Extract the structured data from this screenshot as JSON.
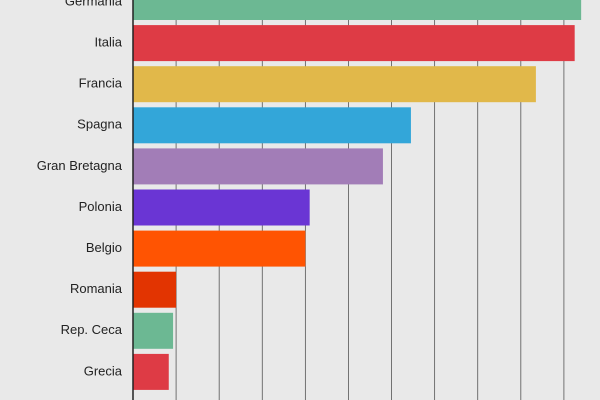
{
  "chart_data": {
    "type": "bar",
    "orientation": "horizontal",
    "title": "",
    "xlabel": "",
    "ylabel": "",
    "grid": true,
    "xlim": [
      0,
      1100
    ],
    "gridlines": [
      0,
      100,
      200,
      300,
      400,
      500,
      600,
      700,
      800,
      900,
      1000,
      1100
    ],
    "categories": [
      "Germania",
      "Italia",
      "Francia",
      "Spagna",
      "Gran Bretagna",
      "Polonia",
      "Belgio",
      "Romania",
      "Rep. Ceca",
      "Grecia"
    ],
    "values": [
      1040,
      1025,
      935,
      645,
      580,
      410,
      400,
      100,
      93,
      83
    ],
    "colors": [
      "#6cb893",
      "#de3b45",
      "#e1b84a",
      "#33a6d9",
      "#a27db7",
      "#6a35d4",
      "#ff5402",
      "#e23401",
      "#6cb893",
      "#de3b45"
    ]
  }
}
